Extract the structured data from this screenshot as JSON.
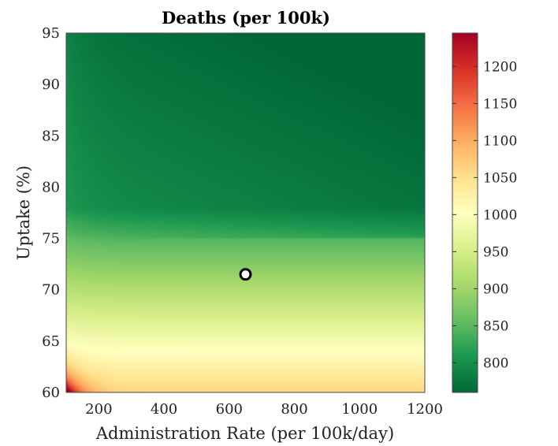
{
  "chart_data": {
    "type": "heatmap",
    "title": "Deaths (per 100k)",
    "xlabel": "Administration Rate (per 100k/day)",
    "ylabel": "Uptake (%)",
    "xlim": [
      100,
      1200
    ],
    "ylim": [
      60,
      95
    ],
    "x_ticks": [
      "200",
      "400",
      "600",
      "800",
      "1000",
      "1200"
    ],
    "y_ticks": [
      "60",
      "65",
      "70",
      "75",
      "80",
      "85",
      "90",
      "95"
    ],
    "colorbar": {
      "colormap": "RdYlGn (reversed: red = high, green = low)",
      "range": [
        760,
        1245
      ],
      "ticks": [
        "800",
        "850",
        "900",
        "950",
        "1000",
        "1050",
        "1100",
        "1150",
        "1200"
      ]
    },
    "marker": {
      "x": 650,
      "y": 71.5,
      "style": "white circle with black edge"
    },
    "field_description": "Deaths are highest (~1240) at low administration rate and low uptake, fall below 1000 as uptake rises above ~66% and rate exceeds ~200, with a sharp drop near 75% uptake down to ~770 at high rate and high uptake."
  }
}
